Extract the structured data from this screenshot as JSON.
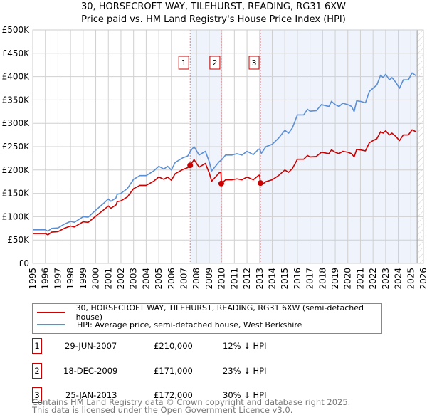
{
  "chart_data": {
    "type": "line",
    "title": "30, HORSECROFT WAY, TILEHURST, READING, RG31 6XW",
    "subtitle": "Price paid vs. HM Land Registry's House Price Index (HPI)",
    "xlim": [
      1995,
      2026
    ],
    "ylim": [
      0,
      500000
    ],
    "x_ticks": [
      "1995",
      "1996",
      "1997",
      "1998",
      "1999",
      "2000",
      "2001",
      "2002",
      "2003",
      "2004",
      "2005",
      "2006",
      "2007",
      "2008",
      "2009",
      "2010",
      "2011",
      "2012",
      "2013",
      "2014",
      "2015",
      "2016",
      "2017",
      "2018",
      "2019",
      "2020",
      "2021",
      "2022",
      "2023",
      "2024",
      "2025",
      "2026"
    ],
    "y_ticks": [
      {
        "v": 0,
        "label": "£0"
      },
      {
        "v": 50000,
        "label": "£50K"
      },
      {
        "v": 100000,
        "label": "£100K"
      },
      {
        "v": 150000,
        "label": "£150K"
      },
      {
        "v": 200000,
        "label": "£200K"
      },
      {
        "v": 250000,
        "label": "£250K"
      },
      {
        "v": 300000,
        "label": "£300K"
      },
      {
        "v": 350000,
        "label": "£350K"
      },
      {
        "v": 400000,
        "label": "£400K"
      },
      {
        "v": 450000,
        "label": "£450K"
      },
      {
        "v": 500000,
        "label": "£500K"
      }
    ],
    "grid": true,
    "legend_placement": "below",
    "series": [
      {
        "name": "30, HORSECROFT WAY, TILEHURST, READING, RG31 6XW (semi-detached house)",
        "color": "#cc0000",
        "unit": "K",
        "points": [
          [
            1995,
            64
          ],
          [
            1995.5,
            64
          ],
          [
            1996,
            64
          ],
          [
            1996.2,
            61
          ],
          [
            1996.5,
            67
          ],
          [
            1997,
            68
          ],
          [
            1997.5,
            75
          ],
          [
            1998,
            80
          ],
          [
            1998.3,
            78
          ],
          [
            1999,
            89
          ],
          [
            1999.4,
            88
          ],
          [
            2000,
            101
          ],
          [
            2000.6,
            114
          ],
          [
            2001,
            123
          ],
          [
            2001.2,
            118
          ],
          [
            2001.6,
            125
          ],
          [
            2001.7,
            132
          ],
          [
            2002,
            134
          ],
          [
            2002.5,
            142
          ],
          [
            2003,
            160
          ],
          [
            2003.5,
            167
          ],
          [
            2004,
            167
          ],
          [
            2004.6,
            176
          ],
          [
            2005,
            185
          ],
          [
            2005.4,
            180
          ],
          [
            2005.7,
            185
          ],
          [
            2006,
            178
          ],
          [
            2006.3,
            192
          ],
          [
            2006.9,
            201
          ],
          [
            2007.3,
            205
          ],
          [
            2007.5,
            210
          ],
          [
            2007.8,
            222
          ],
          [
            2008.2,
            206
          ],
          [
            2008.7,
            214
          ],
          [
            2009,
            194
          ],
          [
            2009.2,
            176
          ],
          [
            2009.8,
            194
          ],
          [
            2009.93,
            195
          ],
          [
            2009.97,
            171
          ],
          [
            2010.3,
            179
          ],
          [
            2010.8,
            179
          ],
          [
            2011.2,
            181
          ],
          [
            2011.6,
            179
          ],
          [
            2012,
            185
          ],
          [
            2012.5,
            179
          ],
          [
            2012.9,
            188
          ],
          [
            2013.0,
            189
          ],
          [
            2013.07,
            172
          ],
          [
            2013.15,
            168
          ],
          [
            2013.5,
            175
          ],
          [
            2014,
            179
          ],
          [
            2014.5,
            188
          ],
          [
            2015,
            200
          ],
          [
            2015.3,
            195
          ],
          [
            2015.6,
            203
          ],
          [
            2016,
            223
          ],
          [
            2016.5,
            223
          ],
          [
            2016.8,
            231
          ],
          [
            2017,
            228
          ],
          [
            2017.5,
            229
          ],
          [
            2017.9,
            238
          ],
          [
            2018.5,
            235
          ],
          [
            2018.7,
            243
          ],
          [
            2019,
            238
          ],
          [
            2019.3,
            235
          ],
          [
            2019.6,
            240
          ],
          [
            2020,
            238
          ],
          [
            2020.3,
            235
          ],
          [
            2020.5,
            228
          ],
          [
            2020.7,
            244
          ],
          [
            2021,
            243
          ],
          [
            2021.4,
            241
          ],
          [
            2021.7,
            258
          ],
          [
            2022,
            263
          ],
          [
            2022.3,
            267
          ],
          [
            2022.6,
            282
          ],
          [
            2022.8,
            279
          ],
          [
            2023,
            284
          ],
          [
            2023.3,
            275
          ],
          [
            2023.5,
            279
          ],
          [
            2023.8,
            272
          ],
          [
            2024.1,
            263
          ],
          [
            2024.4,
            275
          ],
          [
            2024.8,
            275
          ],
          [
            2025.1,
            286
          ],
          [
            2025.4,
            282
          ]
        ]
      },
      {
        "name": "HPI: Average price, semi-detached house, West Berkshire",
        "color": "#5b8fd4",
        "unit": "K",
        "points": [
          [
            1995,
            72
          ],
          [
            1995.5,
            72
          ],
          [
            1996,
            72
          ],
          [
            1996.2,
            69
          ],
          [
            1996.5,
            75
          ],
          [
            1997,
            76
          ],
          [
            1997.5,
            84
          ],
          [
            1998,
            90
          ],
          [
            1998.3,
            88
          ],
          [
            1999,
            100
          ],
          [
            1999.4,
            99
          ],
          [
            2000,
            114
          ],
          [
            2000.6,
            128
          ],
          [
            2001,
            138
          ],
          [
            2001.2,
            133
          ],
          [
            2001.6,
            140
          ],
          [
            2001.7,
            148
          ],
          [
            2002,
            150
          ],
          [
            2002.5,
            160
          ],
          [
            2003,
            180
          ],
          [
            2003.5,
            188
          ],
          [
            2004,
            188
          ],
          [
            2004.6,
            198
          ],
          [
            2005,
            208
          ],
          [
            2005.4,
            202
          ],
          [
            2005.7,
            208
          ],
          [
            2006,
            200
          ],
          [
            2006.3,
            216
          ],
          [
            2006.9,
            226
          ],
          [
            2007.3,
            230
          ],
          [
            2007.5,
            240
          ],
          [
            2007.8,
            250
          ],
          [
            2008.2,
            232
          ],
          [
            2008.7,
            240
          ],
          [
            2009,
            218
          ],
          [
            2009.2,
            198
          ],
          [
            2009.8,
            218
          ],
          [
            2010,
            222
          ],
          [
            2010.3,
            232
          ],
          [
            2010.8,
            232
          ],
          [
            2011.2,
            235
          ],
          [
            2011.6,
            232
          ],
          [
            2012,
            240
          ],
          [
            2012.5,
            233
          ],
          [
            2012.9,
            244
          ],
          [
            2013,
            245
          ],
          [
            2013.15,
            236
          ],
          [
            2013.5,
            250
          ],
          [
            2014,
            255
          ],
          [
            2014.5,
            268
          ],
          [
            2015,
            285
          ],
          [
            2015.3,
            279
          ],
          [
            2015.6,
            290
          ],
          [
            2016,
            318
          ],
          [
            2016.5,
            318
          ],
          [
            2016.8,
            330
          ],
          [
            2017,
            326
          ],
          [
            2017.5,
            327
          ],
          [
            2017.9,
            340
          ],
          [
            2018.5,
            336
          ],
          [
            2018.7,
            347
          ],
          [
            2019,
            340
          ],
          [
            2019.3,
            336
          ],
          [
            2019.6,
            343
          ],
          [
            2020,
            340
          ],
          [
            2020.3,
            336
          ],
          [
            2020.5,
            325
          ],
          [
            2020.7,
            348
          ],
          [
            2021,
            347
          ],
          [
            2021.4,
            344
          ],
          [
            2021.7,
            368
          ],
          [
            2022,
            375
          ],
          [
            2022.3,
            382
          ],
          [
            2022.6,
            403
          ],
          [
            2022.8,
            398
          ],
          [
            2023,
            405
          ],
          [
            2023.3,
            393
          ],
          [
            2023.5,
            398
          ],
          [
            2023.8,
            388
          ],
          [
            2024.1,
            375
          ],
          [
            2024.4,
            393
          ],
          [
            2024.8,
            393
          ],
          [
            2025.1,
            408
          ],
          [
            2025.4,
            402
          ]
        ]
      }
    ],
    "sales": [
      {
        "id": "1",
        "x": 2007.49,
        "value": 210000,
        "date": "29-JUN-2007",
        "price": "£210,000",
        "delta": "12% ↓ HPI"
      },
      {
        "id": "2",
        "x": 2009.96,
        "value": 171000,
        "date": "18-DEC-2009",
        "price": "£171,000",
        "delta": "23% ↓ HPI"
      },
      {
        "id": "3",
        "x": 2013.07,
        "value": 172000,
        "date": "25-JAN-2013",
        "price": "£172,000",
        "delta": "30% ↓ HPI"
      }
    ],
    "shaded_ranges": [
      [
        2007.49,
        2009.96
      ],
      [
        2013.07,
        2025.5
      ]
    ],
    "forecast_start": 2025.5
  },
  "footer": {
    "line1": "Contains HM Land Registry data © Crown copyright and database right 2025.",
    "line2": "This data is licensed under the Open Government Licence v3.0."
  }
}
